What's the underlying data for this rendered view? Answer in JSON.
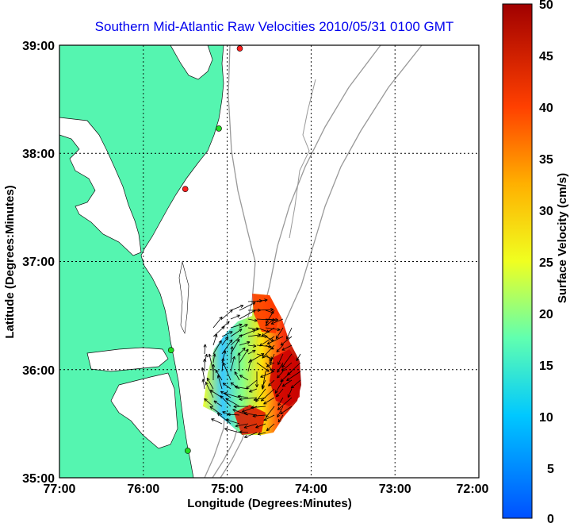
{
  "title": "Southern Mid-Atlantic Raw Velocities 2010/05/31 0100 GMT",
  "x_axis": {
    "label": "Longitude (Degrees:Minutes)",
    "ticks": [
      "77:00",
      "76:00",
      "75:00",
      "74:00",
      "73:00",
      "72:00"
    ]
  },
  "y_axis": {
    "label": "Latitude (Degrees:Minutes)",
    "ticks": [
      "39:00",
      "38:00",
      "37:00",
      "36:00",
      "35:00"
    ]
  },
  "colorbar": {
    "label": "Surface Velocity (cm/s)",
    "ticks": [
      "50",
      "45",
      "40",
      "35",
      "30",
      "25",
      "20",
      "15",
      "10",
      "5",
      "0"
    ],
    "min": 0,
    "max": 50
  },
  "colors": {
    "land": "#55f5b0",
    "water": "#ffffff",
    "title": "#0000ee",
    "bathymetry": "#999999",
    "grid": "#000000"
  },
  "map_extent": {
    "lon_min": -77,
    "lon_max": -72,
    "lat_min": 35,
    "lat_max": 39
  },
  "stations": [
    {
      "lon": -74.85,
      "lat": 38.97,
      "status": "active",
      "color": "#ff2020"
    },
    {
      "lon": -75.1,
      "lat": 38.23,
      "status": "active",
      "color": "#22dd22"
    },
    {
      "lon": -75.5,
      "lat": 37.67,
      "status": "active",
      "color": "#ff2020"
    },
    {
      "lon": -75.67,
      "lat": 36.18,
      "status": "active",
      "color": "#22dd22"
    },
    {
      "lon": -75.47,
      "lat": 35.25,
      "status": "active",
      "color": "#22dd22"
    }
  ]
}
